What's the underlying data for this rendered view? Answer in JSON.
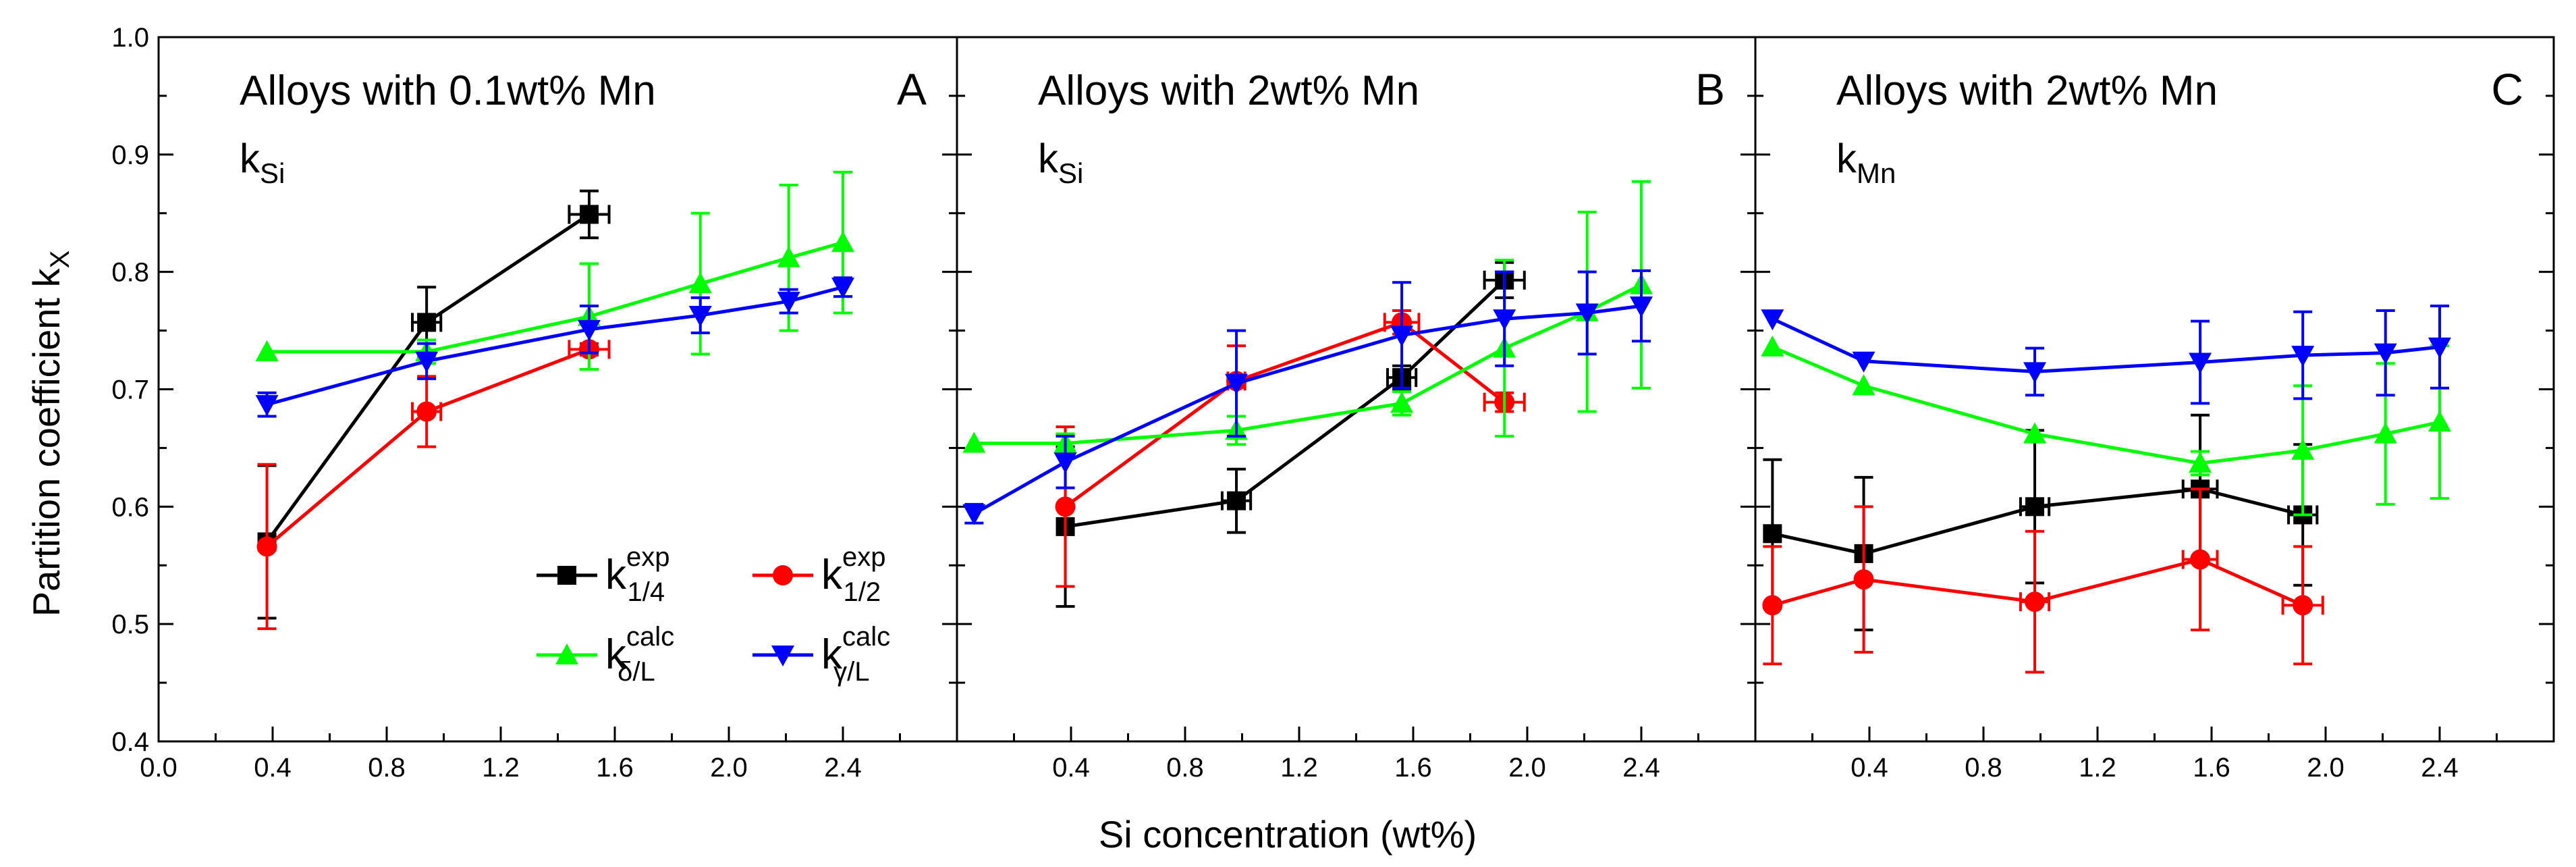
{
  "chart_data": {
    "type": "line",
    "ylabel": "Partition coefficient k",
    "ylabel_sub": "X",
    "xlabel": "Si concentration (wt%)",
    "ylim": [
      0.4,
      1.0
    ],
    "yticks": [
      "0.4",
      "0.5",
      "0.6",
      "0.7",
      "0.8",
      "0.9",
      "1.0"
    ],
    "legend": [
      {
        "id": "k14exp",
        "base": "k",
        "sup": "exp",
        "sub": "1/4",
        "color": "#000000",
        "marker": "square"
      },
      {
        "id": "k12exp",
        "base": "k",
        "sup": "exp",
        "sub": "1/2",
        "color": "#ff0000",
        "marker": "circle"
      },
      {
        "id": "kdLcalc",
        "base": "k",
        "sup": "calc",
        "sub": "δ/L",
        "color": "#00ff00",
        "marker": "triangle-up"
      },
      {
        "id": "kgLcalc",
        "base": "k",
        "sup": "calc",
        "sub": "γ/L",
        "color": "#0000ff",
        "marker": "triangle-down"
      }
    ],
    "panels": [
      {
        "title": "Alloys with 0.1wt% Mn",
        "letter": "A",
        "k_base": "k",
        "k_sub": "Si",
        "xlim": [
          0.0,
          2.8
        ],
        "xticks": [
          "0.0",
          "0.4",
          "0.8",
          "1.2",
          "1.6",
          "2.0",
          "2.4"
        ],
        "series": [
          {
            "id": "k14exp",
            "points": [
              {
                "x": 0.38,
                "y": 0.57,
                "yerr": 0.065,
                "xerr": 0
              },
              {
                "x": 0.94,
                "y": 0.757,
                "yerr": 0.03,
                "xerr": 0.05
              },
              {
                "x": 1.51,
                "y": 0.849,
                "yerr": 0.02,
                "xerr": 0.07
              }
            ]
          },
          {
            "id": "k12exp",
            "points": [
              {
                "x": 0.38,
                "y": 0.566,
                "yerr": 0.07,
                "xerr": 0
              },
              {
                "x": 0.94,
                "y": 0.681,
                "yerr": 0.03,
                "xerr": 0.05
              },
              {
                "x": 1.51,
                "y": 0.734,
                "yerr": 0.005,
                "xerr": 0.07
              }
            ]
          },
          {
            "id": "kdLcalc",
            "points": [
              {
                "x": 0.38,
                "y": 0.732,
                "yerr": 0,
                "xerr": 0
              },
              {
                "x": 0.94,
                "y": 0.732,
                "yerr": 0.01,
                "xerr": 0
              },
              {
                "x": 1.51,
                "y": 0.762,
                "yerr": 0.045,
                "xerr": 0
              },
              {
                "x": 1.9,
                "y": 0.79,
                "yerr": 0.06,
                "xerr": 0
              },
              {
                "x": 2.21,
                "y": 0.812,
                "yerr": 0.062,
                "xerr": 0
              },
              {
                "x": 2.4,
                "y": 0.825,
                "yerr": 0.06,
                "xerr": 0
              }
            ]
          },
          {
            "id": "kgLcalc",
            "points": [
              {
                "x": 0.38,
                "y": 0.687,
                "yerr": 0.01,
                "xerr": 0
              },
              {
                "x": 0.94,
                "y": 0.724,
                "yerr": 0.015,
                "xerr": 0
              },
              {
                "x": 1.51,
                "y": 0.751,
                "yerr": 0.02,
                "xerr": 0
              },
              {
                "x": 1.9,
                "y": 0.763,
                "yerr": 0.015,
                "xerr": 0
              },
              {
                "x": 2.21,
                "y": 0.775,
                "yerr": 0.01,
                "xerr": 0
              },
              {
                "x": 2.4,
                "y": 0.787,
                "yerr": 0.008,
                "xerr": 0
              }
            ]
          }
        ]
      },
      {
        "title": "Alloys with 2wt% Mn",
        "letter": "B",
        "k_base": "k",
        "k_sub": "Si",
        "xlim": [
          0.0,
          2.8
        ],
        "xticks": [
          "0.4",
          "0.8",
          "1.2",
          "1.6",
          "2.0",
          "2.4"
        ],
        "series": [
          {
            "id": "k14exp",
            "points": [
              {
                "x": 0.38,
                "y": 0.583,
                "yerr": 0.068,
                "xerr": 0
              },
              {
                "x": 0.98,
                "y": 0.605,
                "yerr": 0.027,
                "xerr": 0.05
              },
              {
                "x": 1.56,
                "y": 0.71,
                "yerr": 0.01,
                "xerr": 0.05
              },
              {
                "x": 1.92,
                "y": 0.793,
                "yerr": 0.015,
                "xerr": 0.07
              }
            ]
          },
          {
            "id": "k12exp",
            "points": [
              {
                "x": 0.38,
                "y": 0.6,
                "yerr": 0.068,
                "xerr": 0
              },
              {
                "x": 0.98,
                "y": 0.707,
                "yerr": 0.03,
                "xerr": 0.03
              },
              {
                "x": 1.56,
                "y": 0.757,
                "yerr": 0.01,
                "xerr": 0.06
              },
              {
                "x": 1.92,
                "y": 0.689,
                "yerr": 0.008,
                "xerr": 0.07
              }
            ]
          },
          {
            "id": "kdLcalc",
            "points": [
              {
                "x": 0.06,
                "y": 0.654,
                "yerr": 0,
                "xerr": 0
              },
              {
                "x": 0.38,
                "y": 0.654,
                "yerr": 0.008,
                "xerr": 0
              },
              {
                "x": 0.98,
                "y": 0.665,
                "yerr": 0.012,
                "xerr": 0
              },
              {
                "x": 1.56,
                "y": 0.688,
                "yerr": 0.01,
                "xerr": 0
              },
              {
                "x": 1.92,
                "y": 0.735,
                "yerr": 0.075,
                "xerr": 0
              },
              {
                "x": 2.21,
                "y": 0.766,
                "yerr": 0.085,
                "xerr": 0
              },
              {
                "x": 2.4,
                "y": 0.789,
                "yerr": 0.088,
                "xerr": 0
              }
            ]
          },
          {
            "id": "kgLcalc",
            "points": [
              {
                "x": 0.06,
                "y": 0.594,
                "yerr": 0.008,
                "xerr": 0
              },
              {
                "x": 0.38,
                "y": 0.638,
                "yerr": 0.022,
                "xerr": 0
              },
              {
                "x": 0.98,
                "y": 0.705,
                "yerr": 0.045,
                "xerr": 0
              },
              {
                "x": 1.56,
                "y": 0.746,
                "yerr": 0.045,
                "xerr": 0
              },
              {
                "x": 1.92,
                "y": 0.76,
                "yerr": 0.04,
                "xerr": 0
              },
              {
                "x": 2.21,
                "y": 0.765,
                "yerr": 0.035,
                "xerr": 0
              },
              {
                "x": 2.4,
                "y": 0.771,
                "yerr": 0.03,
                "xerr": 0
              }
            ]
          }
        ]
      },
      {
        "title": "Alloys with 2wt% Mn",
        "letter": "C",
        "k_base": "k",
        "k_sub": "Mn",
        "xlim": [
          0.0,
          2.8
        ],
        "xticks": [
          "0.4",
          "0.8",
          "1.2",
          "1.6",
          "2.0",
          "2.4"
        ],
        "series": [
          {
            "id": "k14exp",
            "points": [
              {
                "x": 0.06,
                "y": 0.577,
                "yerr": 0.063,
                "xerr": 0
              },
              {
                "x": 0.38,
                "y": 0.56,
                "yerr": 0.065,
                "xerr": 0
              },
              {
                "x": 0.98,
                "y": 0.6,
                "yerr": 0.065,
                "xerr": 0.05
              },
              {
                "x": 1.56,
                "y": 0.615,
                "yerr": 0.063,
                "xerr": 0.06
              },
              {
                "x": 1.92,
                "y": 0.593,
                "yerr": 0.06,
                "xerr": 0.05
              }
            ]
          },
          {
            "id": "k12exp",
            "points": [
              {
                "x": 0.06,
                "y": 0.516,
                "yerr": 0.05,
                "xerr": 0
              },
              {
                "x": 0.38,
                "y": 0.538,
                "yerr": 0.062,
                "xerr": 0
              },
              {
                "x": 0.98,
                "y": 0.519,
                "yerr": 0.06,
                "xerr": 0.05
              },
              {
                "x": 1.56,
                "y": 0.555,
                "yerr": 0.06,
                "xerr": 0.06
              },
              {
                "x": 1.92,
                "y": 0.516,
                "yerr": 0.05,
                "xerr": 0.07
              }
            ]
          },
          {
            "id": "kdLcalc",
            "points": [
              {
                "x": 0.06,
                "y": 0.736,
                "yerr": 0,
                "xerr": 0
              },
              {
                "x": 0.38,
                "y": 0.703,
                "yerr": 0,
                "xerr": 0
              },
              {
                "x": 0.98,
                "y": 0.662,
                "yerr": 0,
                "xerr": 0
              },
              {
                "x": 1.56,
                "y": 0.637,
                "yerr": 0.01,
                "xerr": 0
              },
              {
                "x": 1.92,
                "y": 0.648,
                "yerr": 0.055,
                "xerr": 0
              },
              {
                "x": 2.21,
                "y": 0.662,
                "yerr": 0.06,
                "xerr": 0
              },
              {
                "x": 2.4,
                "y": 0.672,
                "yerr": 0.065,
                "xerr": 0
              }
            ]
          },
          {
            "id": "kgLcalc",
            "points": [
              {
                "x": 0.06,
                "y": 0.76,
                "yerr": 0,
                "xerr": 0
              },
              {
                "x": 0.38,
                "y": 0.724,
                "yerr": 0,
                "xerr": 0
              },
              {
                "x": 0.98,
                "y": 0.715,
                "yerr": 0.02,
                "xerr": 0
              },
              {
                "x": 1.56,
                "y": 0.723,
                "yerr": 0.035,
                "xerr": 0
              },
              {
                "x": 1.92,
                "y": 0.729,
                "yerr": 0.037,
                "xerr": 0
              },
              {
                "x": 2.21,
                "y": 0.731,
                "yerr": 0.036,
                "xerr": 0
              },
              {
                "x": 2.4,
                "y": 0.736,
                "yerr": 0.035,
                "xerr": 0
              }
            ]
          }
        ]
      }
    ]
  }
}
